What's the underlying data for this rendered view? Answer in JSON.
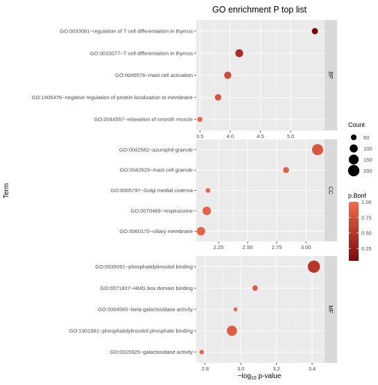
{
  "chart_data": {
    "type": "scatter",
    "title": "GO enrichment P top list",
    "xlabel_prefix": "−log",
    "xlabel_subscript": "10",
    "xlabel_suffix": " p-value",
    "ylabel": "Term",
    "facets": [
      {
        "strip": "BP",
        "xlim": [
          3.44,
          5.56
        ],
        "xticks": [
          3.5,
          4.0,
          4.5,
          5.0
        ],
        "tick_labels": [
          "3.5",
          "4.0",
          "4.5",
          "5.0"
        ],
        "terms": [
          "GO:0033081~regulation of T cell differentiation in thymus",
          "GO:0033077~T cell differentiation in thymus",
          "GO:0045576~mast cell activation",
          "GO:1905476~negative regulation of protein localization to membrane",
          "GO:0044557~relaxation of smooth muscle"
        ],
        "x": [
          5.4,
          4.15,
          3.96,
          3.8,
          3.5
        ],
        "count": [
          60,
          95,
          80,
          65,
          40
        ],
        "p_bonf": [
          0.05,
          0.4,
          0.7,
          0.8,
          0.95
        ]
      },
      {
        "strip": "CC",
        "xlim": [
          2.06,
          3.16
        ],
        "xticks": [
          2.25,
          2.5,
          2.75,
          3.0
        ],
        "tick_labels": [
          "2.25",
          "2.50",
          "2.75",
          "3.00"
        ],
        "terms": [
          "GO:0042582~azurophil granule",
          "GO:0042629~mast cell granule",
          "GO:0005797~Golgi medial cisterna",
          "GO:0070469~respirasome",
          "GO:0060170~ciliary membrane"
        ],
        "x": [
          3.1,
          2.83,
          2.16,
          2.15,
          2.1
        ],
        "count": [
          190,
          55,
          35,
          110,
          110
        ],
        "p_bonf": [
          0.8,
          0.9,
          0.95,
          0.9,
          0.9
        ]
      },
      {
        "strip": "MF",
        "xlim": [
          2.75,
          3.47
        ],
        "xticks": [
          2.8,
          3.0,
          3.2,
          3.4
        ],
        "tick_labels": [
          "2.8",
          "3.0",
          "3.2",
          "3.4"
        ],
        "terms": [
          "GO:0035091~phosphatidylinositol binding",
          "GO:0071837~HMG box domain binding",
          "GO:0004565~beta-galactosidase activity",
          "GO:1901981~phosphatidylinositol phosphate binding",
          "GO:0015925~galactosidase activity"
        ],
        "x": [
          3.41,
          3.08,
          2.97,
          2.95,
          2.78
        ],
        "count": [
          230,
          45,
          25,
          160,
          30
        ],
        "p_bonf": [
          0.5,
          0.85,
          0.95,
          0.85,
          0.95
        ]
      }
    ],
    "legend_count": {
      "title": "Count",
      "values": [
        50,
        100,
        150,
        200
      ],
      "labels": [
        "50",
        "100",
        "150",
        "200"
      ]
    },
    "legend_color": {
      "title": "p.Bonf",
      "ticks": [
        0.25,
        0.5,
        0.75,
        1.0
      ],
      "labels": [
        "0.25",
        "0.50",
        "0.75",
        "1.00"
      ],
      "low_color": "#7a0a0a",
      "high_color": "#f4694e"
    },
    "colors": {
      "panel_bg": "#ebebeb",
      "grid_major": "#ffffff",
      "strip_bg": "#d9d9d9"
    },
    "grid": true,
    "legend_position": "right"
  }
}
